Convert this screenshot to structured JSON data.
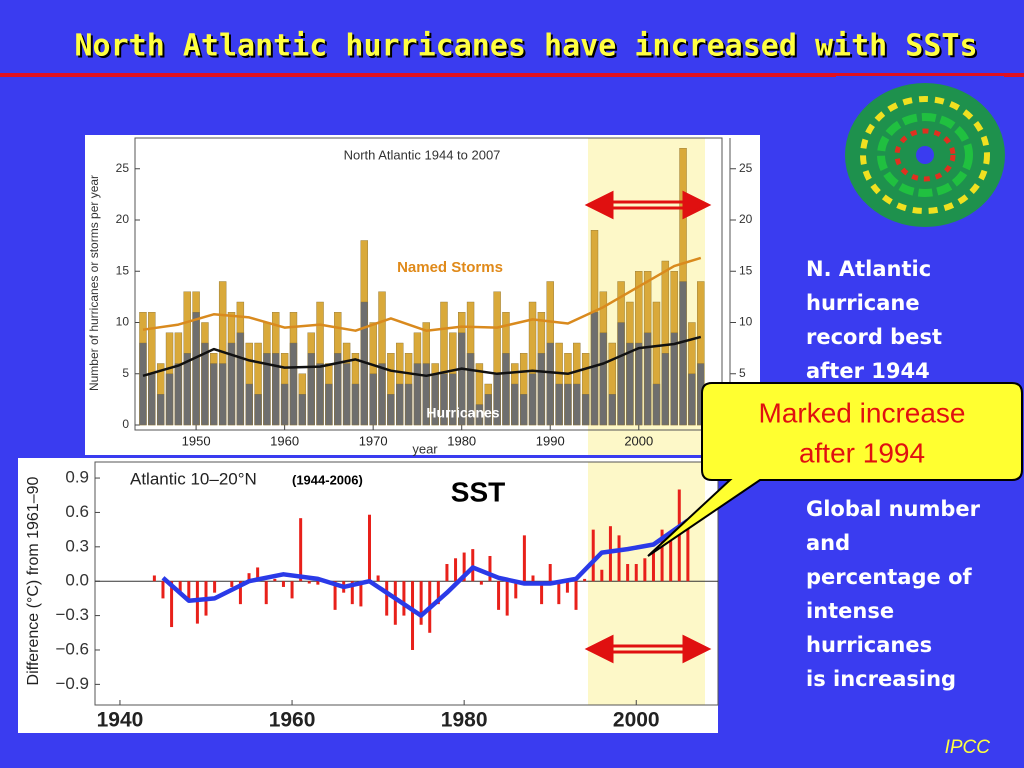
{
  "slide": {
    "title": "North Atlantic hurricanes have increased with SSTs",
    "note1": [
      "N. Atlantic",
      "hurricane",
      "record best",
      "after 1944"
    ],
    "callout": [
      "Marked increase",
      "after 1994"
    ],
    "note2": [
      "Global number",
      "and",
      "percentage of",
      "intense",
      "hurricanes",
      "is increasing"
    ],
    "sst": "SST",
    "source": "IPCC"
  },
  "chart_data": [
    {
      "type": "bar",
      "title": "North Atlantic  1944 to 2007",
      "xlabel": "year",
      "ylabel": "Number of hurricanes or storms per year",
      "x": [
        1944,
        1945,
        1946,
        1947,
        1948,
        1949,
        1950,
        1951,
        1952,
        1953,
        1954,
        1955,
        1956,
        1957,
        1958,
        1959,
        1960,
        1961,
        1962,
        1963,
        1964,
        1965,
        1966,
        1967,
        1968,
        1969,
        1970,
        1971,
        1972,
        1973,
        1974,
        1975,
        1976,
        1977,
        1978,
        1979,
        1980,
        1981,
        1982,
        1983,
        1984,
        1985,
        1986,
        1987,
        1988,
        1989,
        1990,
        1991,
        1992,
        1993,
        1994,
        1995,
        1996,
        1997,
        1998,
        1999,
        2000,
        2001,
        2002,
        2003,
        2004,
        2005,
        2006,
        2007
      ],
      "xlim": [
        1943.1,
        2009.4
      ],
      "xticks": [
        1950,
        1960,
        1970,
        1980,
        1990,
        2000
      ],
      "ylim": [
        0,
        28
      ],
      "yticks": [
        0,
        5,
        10,
        15,
        20,
        25
      ],
      "series": [
        {
          "name": "Named Storms",
          "color": "#d9a93a",
          "values": [
            11,
            11,
            6,
            9,
            9,
            13,
            13,
            10,
            7,
            14,
            11,
            12,
            8,
            8,
            10,
            11,
            7,
            11,
            5,
            9,
            12,
            6,
            11,
            8,
            7,
            18,
            10,
            13,
            7,
            8,
            7,
            9,
            10,
            6,
            12,
            9,
            11,
            12,
            6,
            4,
            13,
            11,
            6,
            7,
            12,
            11,
            14,
            8,
            7,
            8,
            7,
            19,
            13,
            8,
            14,
            12,
            15,
            15,
            12,
            16,
            15,
            27,
            10,
            14
          ]
        },
        {
          "name": "Hurricanes",
          "color": "#6e6e6e",
          "values": [
            8,
            5,
            3,
            5,
            6,
            7,
            11,
            8,
            6,
            6,
            8,
            9,
            4,
            3,
            7,
            7,
            4,
            8,
            3,
            7,
            6,
            4,
            7,
            6,
            4,
            12,
            5,
            6,
            3,
            4,
            4,
            6,
            6,
            5,
            5,
            5,
            9,
            7,
            2,
            3,
            5,
            7,
            4,
            3,
            5,
            7,
            8,
            4,
            4,
            4,
            3,
            11,
            9,
            3,
            10,
            8,
            8,
            9,
            4,
            7,
            9,
            14,
            5,
            6
          ]
        }
      ],
      "smoothed": [
        {
          "color": "#d98a1e",
          "x": [
            1944,
            1948,
            1952,
            1956,
            1960,
            1964,
            1968,
            1972,
            1976,
            1980,
            1984,
            1988,
            1992,
            1996,
            2000,
            2004,
            2007
          ],
          "values": [
            9.3,
            9.8,
            10.8,
            10.5,
            9.5,
            9.8,
            9.2,
            10.4,
            9.2,
            9.6,
            9.5,
            10.3,
            9.9,
            11.5,
            13.5,
            15.5,
            16.3
          ]
        },
        {
          "color": "#111111",
          "x": [
            1944,
            1948,
            1952,
            1956,
            1960,
            1964,
            1968,
            1972,
            1976,
            1980,
            1984,
            1988,
            1992,
            1996,
            2000,
            2004,
            2007
          ],
          "values": [
            4.8,
            5.8,
            7.4,
            6.3,
            5.6,
            5.7,
            6.4,
            5.3,
            4.8,
            5.5,
            5.0,
            5.3,
            5.0,
            6.0,
            7.5,
            7.9,
            8.6
          ]
        }
      ]
    },
    {
      "type": "bar",
      "title": "Atlantic 10–20°N",
      "subtitle": "(1944-2006)",
      "ylabel": "Difference (°C) from 1961–90",
      "x": [
        1944,
        1945,
        1946,
        1947,
        1948,
        1949,
        1950,
        1951,
        1952,
        1953,
        1954,
        1955,
        1956,
        1957,
        1958,
        1959,
        1960,
        1961,
        1962,
        1963,
        1964,
        1965,
        1966,
        1967,
        1968,
        1969,
        1970,
        1971,
        1972,
        1973,
        1974,
        1975,
        1976,
        1977,
        1978,
        1979,
        1980,
        1981,
        1982,
        1983,
        1984,
        1985,
        1986,
        1987,
        1988,
        1989,
        1990,
        1991,
        1992,
        1993,
        1994,
        1995,
        1996,
        1997,
        1998,
        1999,
        2000,
        2001,
        2002,
        2003,
        2004,
        2005,
        2006
      ],
      "xlim": [
        1937.1,
        2009.5
      ],
      "xticks": [
        1940,
        1960,
        1980,
        2000
      ],
      "ylim": [
        -1.08,
        1.04
      ],
      "yticks": [
        {
          "value": -0.9,
          "label": "−0.9"
        },
        {
          "value": -0.6,
          "label": "−0.6"
        },
        {
          "value": -0.3,
          "label": "−0.3"
        },
        {
          "value": 0,
          "label": "0.0"
        },
        0.3,
        0.6,
        0.9
      ],
      "series": [
        {
          "color": "#e8201a",
          "values": [
            0.05,
            -0.15,
            -0.4,
            -0.1,
            -0.15,
            -0.37,
            -0.3,
            -0.1,
            0.0,
            -0.05,
            -0.2,
            0.07,
            0.12,
            -0.2,
            0.02,
            -0.05,
            -0.15,
            0.55,
            -0.02,
            -0.03,
            0.0,
            -0.25,
            -0.1,
            -0.2,
            -0.22,
            0.58,
            0.05,
            -0.3,
            -0.38,
            -0.3,
            -0.6,
            -0.38,
            -0.45,
            -0.2,
            0.15,
            0.2,
            0.25,
            0.28,
            -0.03,
            0.22,
            -0.25,
            -0.3,
            -0.15,
            0.4,
            0.05,
            -0.2,
            0.15,
            -0.2,
            -0.1,
            -0.25,
            0.02,
            0.45,
            0.1,
            0.48,
            0.4,
            0.15,
            0.15,
            0.2,
            0.25,
            0.45,
            0.35,
            0.8,
            0.5
          ]
        }
      ],
      "smoothed": [
        {
          "color": "#2a3ae8",
          "x": [
            1945,
            1948,
            1951,
            1955,
            1959,
            1963,
            1966,
            1969,
            1972,
            1975,
            1978,
            1981,
            1984,
            1987,
            1990,
            1993,
            1996,
            1999,
            2002,
            2006
          ],
          "values": [
            0.03,
            -0.17,
            -0.15,
            0.0,
            0.06,
            0.02,
            -0.05,
            0.0,
            -0.15,
            -0.3,
            -0.1,
            0.12,
            0.03,
            -0.02,
            -0.02,
            0.02,
            0.25,
            0.28,
            0.32,
            0.53
          ]
        }
      ]
    }
  ]
}
